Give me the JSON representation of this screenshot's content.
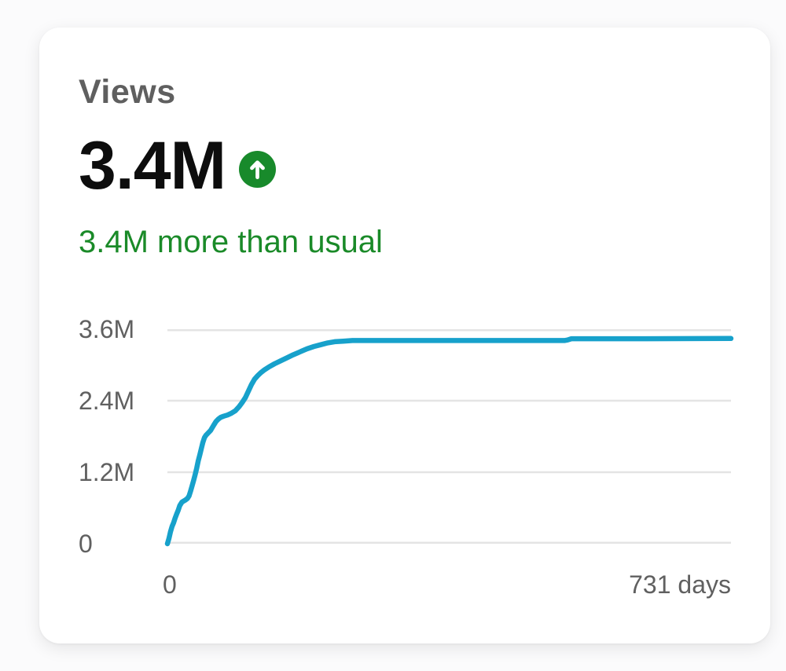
{
  "card": {
    "title": "Views",
    "value": "3.4M",
    "trend_text": "3.4M more than usual",
    "trend_direction": "up",
    "colors": {
      "title_gray": "#5f5f5f",
      "value_black": "#0d0d0d",
      "trend_green": "#1a8a28",
      "badge_green": "#188a2b",
      "badge_arrow_white": "#ffffff",
      "axis_gray": "#606060"
    }
  },
  "chart_data": {
    "type": "line",
    "title": "Views cumulative over time",
    "x_unit": "days",
    "xlim": [
      0,
      731
    ],
    "ylim": [
      0,
      3600000
    ],
    "y_ticks": [
      "3.6M",
      "2.4M",
      "1.2M",
      "0"
    ],
    "y_tick_values": [
      3600000,
      2400000,
      1200000,
      0
    ],
    "x_tick_labels": [
      "0",
      "731 days"
    ],
    "grid": true,
    "grid_color": "#e4e4e4",
    "line_color": "#17a1cb",
    "legend": "none",
    "series": [
      {
        "name": "Views",
        "points": [
          [
            0,
            0
          ],
          [
            2,
            90000
          ],
          [
            4,
            200000
          ],
          [
            6,
            290000
          ],
          [
            8,
            350000
          ],
          [
            10,
            430000
          ],
          [
            12,
            500000
          ],
          [
            14,
            560000
          ],
          [
            16,
            640000
          ],
          [
            19,
            700000
          ],
          [
            23,
            730000
          ],
          [
            26,
            760000
          ],
          [
            28,
            800000
          ],
          [
            30,
            880000
          ],
          [
            32,
            970000
          ],
          [
            34,
            1060000
          ],
          [
            36,
            1160000
          ],
          [
            38,
            1270000
          ],
          [
            40,
            1390000
          ],
          [
            42,
            1490000
          ],
          [
            44,
            1600000
          ],
          [
            46,
            1700000
          ],
          [
            48,
            1780000
          ],
          [
            50,
            1820000
          ],
          [
            53,
            1860000
          ],
          [
            56,
            1900000
          ],
          [
            60,
            1990000
          ],
          [
            63,
            2050000
          ],
          [
            66,
            2090000
          ],
          [
            69,
            2120000
          ],
          [
            73,
            2140000
          ],
          [
            78,
            2160000
          ],
          [
            83,
            2190000
          ],
          [
            88,
            2230000
          ],
          [
            93,
            2300000
          ],
          [
            97,
            2370000
          ],
          [
            101,
            2450000
          ],
          [
            105,
            2560000
          ],
          [
            109,
            2670000
          ],
          [
            113,
            2760000
          ],
          [
            117,
            2820000
          ],
          [
            121,
            2870000
          ],
          [
            126,
            2920000
          ],
          [
            132,
            2970000
          ],
          [
            139,
            3020000
          ],
          [
            147,
            3070000
          ],
          [
            155,
            3120000
          ],
          [
            163,
            3170000
          ],
          [
            172,
            3220000
          ],
          [
            181,
            3270000
          ],
          [
            190,
            3310000
          ],
          [
            199,
            3340000
          ],
          [
            208,
            3370000
          ],
          [
            217,
            3390000
          ],
          [
            228,
            3400000
          ],
          [
            240,
            3410000
          ],
          [
            350,
            3410000
          ],
          [
            515,
            3410000
          ],
          [
            519,
            3420000
          ],
          [
            524,
            3440000
          ],
          [
            620,
            3440000
          ],
          [
            731,
            3445000
          ]
        ]
      }
    ]
  }
}
